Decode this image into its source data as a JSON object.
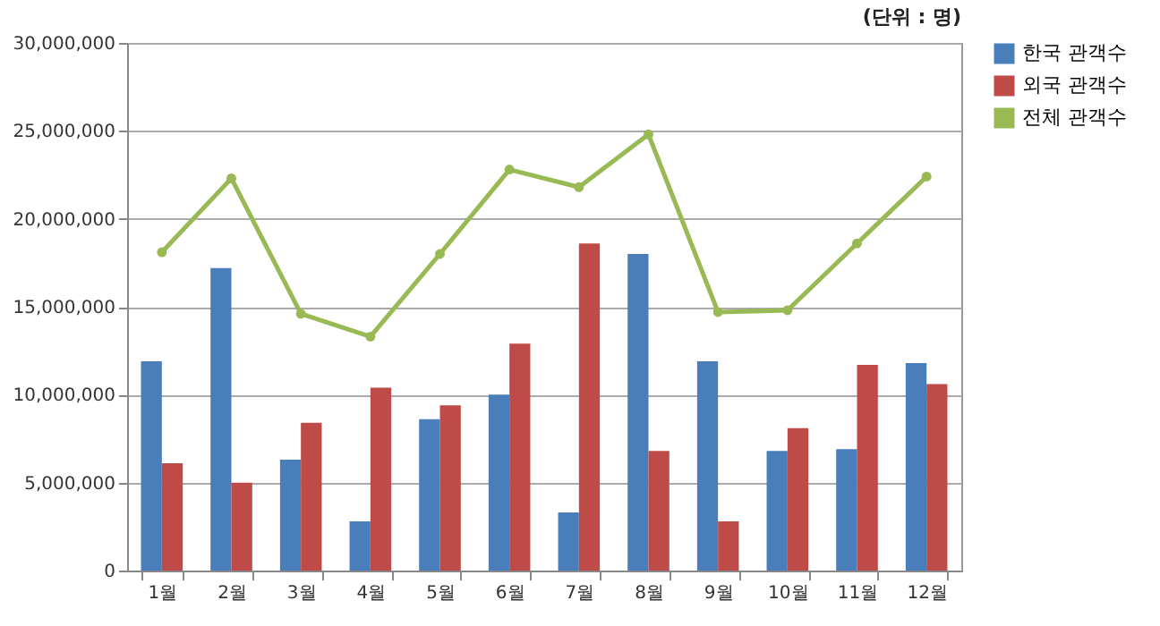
{
  "chart_data": {
    "type": "bar",
    "annotations": [
      "(단위 : 명)"
    ],
    "categories": [
      "1월",
      "2월",
      "3월",
      "4월",
      "5월",
      "6월",
      "7월",
      "8월",
      "9월",
      "10월",
      "11월",
      "12월"
    ],
    "series": [
      {
        "name": "한국 관객수",
        "color": "#4a7ebb",
        "values": [
          11900000,
          17200000,
          6300000,
          2800000,
          8600000,
          10000000,
          3300000,
          18000000,
          11900000,
          6800000,
          6900000,
          11800000
        ]
      },
      {
        "name": "외국 관객수",
        "color": "#be4b48",
        "values": [
          6100000,
          5000000,
          8400000,
          10400000,
          9400000,
          12900000,
          18600000,
          6800000,
          2800000,
          8100000,
          11700000,
          10600000
        ]
      },
      {
        "name": "전체 관객수",
        "type": "line",
        "color": "#98b954",
        "marker": "circle",
        "values": [
          18100000,
          22300000,
          14600000,
          13300000,
          18000000,
          22800000,
          21800000,
          24800000,
          14700000,
          14800000,
          18600000,
          22400000
        ]
      }
    ],
    "ylim": [
      0,
      30000000
    ],
    "yticks": [
      0,
      {
        "value": 5000000,
        "label": "5,000,000"
      },
      {
        "value": 10000000,
        "label": "10,000,000"
      },
      {
        "value": 15000000,
        "label": "15,000,000"
      },
      {
        "value": 20000000,
        "label": "20,000,000"
      },
      {
        "value": 25000000,
        "label": "25,000,000"
      },
      {
        "value": 30000000,
        "label": "30,000,000"
      }
    ],
    "grid": "y",
    "legend": "right"
  }
}
